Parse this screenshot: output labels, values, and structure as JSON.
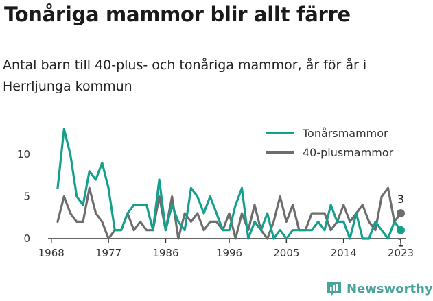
{
  "title": "Tonåriga mammor blir allt färre",
  "subtitle": "Antal barn till 40-plus- och tonåriga mammor, år för år i Herrljunga kommun",
  "brand": "Newsworthy",
  "colors": {
    "teen": "#15a08d",
    "forty": "#6d6d6d",
    "axis": "#333333"
  },
  "chart_data": {
    "type": "line",
    "x": [
      1969,
      1970,
      1971,
      1972,
      1973,
      1974,
      1975,
      1976,
      1977,
      1978,
      1979,
      1980,
      1981,
      1982,
      1983,
      1984,
      1985,
      1986,
      1987,
      1988,
      1989,
      1990,
      1991,
      1992,
      1993,
      1994,
      1995,
      1996,
      1997,
      1998,
      1999,
      2000,
      2001,
      2002,
      2003,
      2004,
      2005,
      2006,
      2007,
      2008,
      2009,
      2010,
      2011,
      2012,
      2013,
      2014,
      2015,
      2016,
      2017,
      2018,
      2019,
      2020,
      2021,
      2022,
      2023
    ],
    "series": [
      {
        "name": "Tonårsmammor",
        "color": "#15a08d",
        "values": [
          6,
          13,
          10,
          5,
          4,
          8,
          7,
          9,
          6,
          1,
          1,
          3,
          4,
          4,
          4,
          1,
          7,
          1,
          4,
          2,
          1,
          6,
          5,
          3,
          5,
          3,
          1,
          1,
          4,
          6,
          0,
          2,
          1,
          3,
          0,
          1,
          0,
          1,
          1,
          1,
          1,
          2,
          1,
          4,
          2,
          2,
          0,
          3,
          0,
          0,
          2,
          1,
          0,
          2,
          1
        ]
      },
      {
        "name": "40-plusmammor",
        "color": "#6d6d6d",
        "values": [
          2,
          5,
          3,
          2,
          2,
          6,
          3,
          2,
          0,
          1,
          1,
          3,
          1,
          2,
          1,
          1,
          5,
          1,
          5,
          0,
          3,
          2,
          3,
          1,
          2,
          2,
          1,
          3,
          0,
          3,
          1,
          4,
          1,
          0,
          2,
          5,
          2,
          4,
          1,
          1,
          3,
          3,
          3,
          1,
          2,
          4,
          2,
          3,
          4,
          2,
          1,
          5,
          6,
          2,
          3
        ]
      }
    ],
    "x_ticks": [
      "1968",
      "1977",
      "1986",
      "1996",
      "2005",
      "2014",
      "2023"
    ],
    "y_ticks": [
      "0",
      "5",
      "10"
    ],
    "ylim": [
      0,
      14
    ],
    "end_labels": {
      "Tonårsmammor": "1",
      "40-plusmammor": "3"
    },
    "legend_position": "top-right",
    "grid": false
  }
}
